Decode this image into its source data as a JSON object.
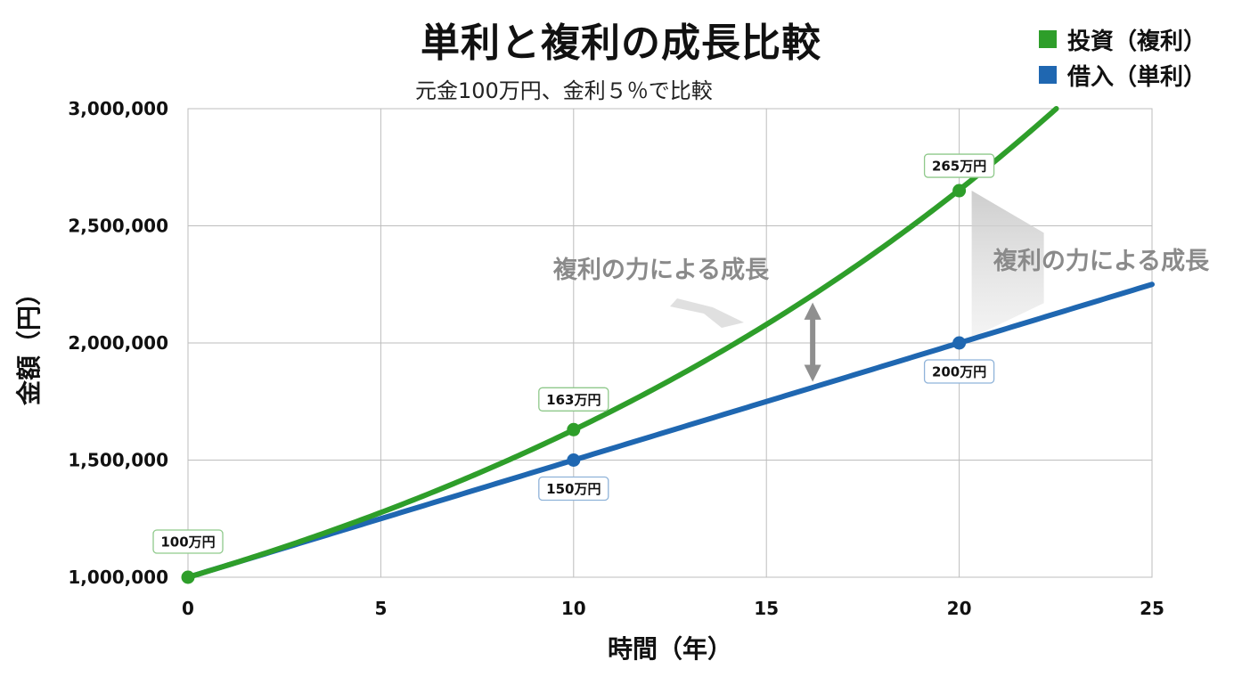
{
  "chart_data": {
    "type": "line",
    "title": "単利と複利の成長比較",
    "subtitle": "元金100万円、金利５％で比較",
    "xlabel": "時間（年）",
    "ylabel": "金額（円）",
    "xlim": [
      0,
      25
    ],
    "ylim": [
      1000000,
      3000000
    ],
    "x_ticks": [
      0,
      5,
      10,
      15,
      20,
      25
    ],
    "y_ticks": [
      1000000,
      1500000,
      2000000,
      2500000,
      3000000
    ],
    "y_tick_labels": [
      "1,000,000",
      "1,500,000",
      "2,000,000",
      "2,500,000",
      "3,000,000"
    ],
    "grid": true,
    "legend_position": "top-right",
    "series": [
      {
        "name": "投資（複利）",
        "color": "#2e9e2a",
        "formula": "compound",
        "principal": 1000000,
        "rate": 0.05
      },
      {
        "name": "借入（単利）",
        "color": "#1f67b1",
        "formula": "simple",
        "principal": 1000000,
        "rate": 0.05
      }
    ],
    "points": [
      {
        "series": 0,
        "x": 0,
        "y": 1000000,
        "label": "100万円"
      },
      {
        "series": 0,
        "x": 10,
        "y": 1630000,
        "label": "163万円"
      },
      {
        "series": 1,
        "x": 10,
        "y": 1500000,
        "label": "150万円"
      },
      {
        "series": 0,
        "x": 20,
        "y": 2650000,
        "label": "265万円"
      },
      {
        "series": 1,
        "x": 20,
        "y": 2000000,
        "label": "200万円"
      }
    ],
    "annotations": [
      "複利の力による成長",
      "複利の力による成長"
    ],
    "fill_color": "#dcefd9"
  }
}
